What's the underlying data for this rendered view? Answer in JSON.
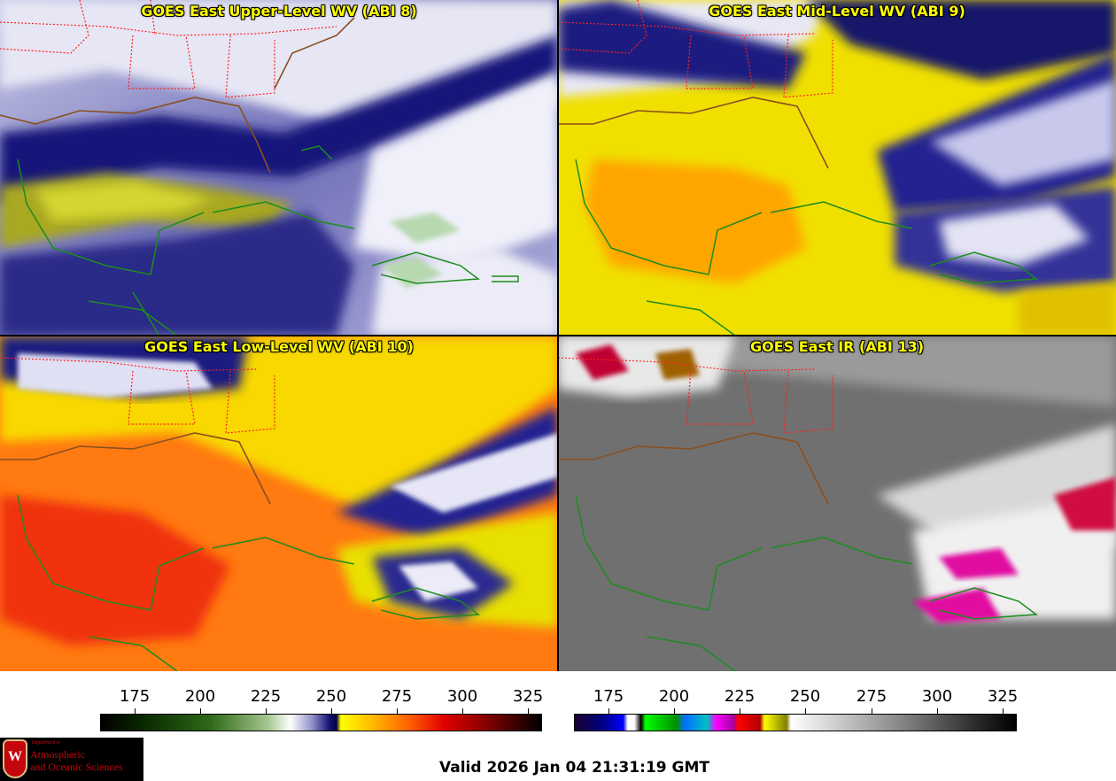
{
  "panels": [
    {
      "title": "GOES East Upper-Level WV (ABI 8)"
    },
    {
      "title": "GOES East Mid-Level WV (ABI 9)"
    },
    {
      "title": "GOES East Low-Level WV (ABI 10)"
    },
    {
      "title": "GOES East IR (ABI 13)"
    }
  ],
  "colorbars": {
    "water_vapor": {
      "ticks": [
        "175",
        "200",
        "225",
        "250",
        "275",
        "300",
        "325"
      ]
    },
    "infrared": {
      "ticks": [
        "175",
        "200",
        "225",
        "250",
        "275",
        "300",
        "325"
      ]
    }
  },
  "logo": {
    "department": "Department of",
    "line1": "Atmospheric",
    "line2": "and Oceanic Sciences"
  },
  "valid_time": "Valid 2026 Jan 04 21:31:19 GMT",
  "colors": {
    "coastline": "#1e8c1e",
    "state_borders": "#e01010",
    "title_text": "#ffff00"
  }
}
